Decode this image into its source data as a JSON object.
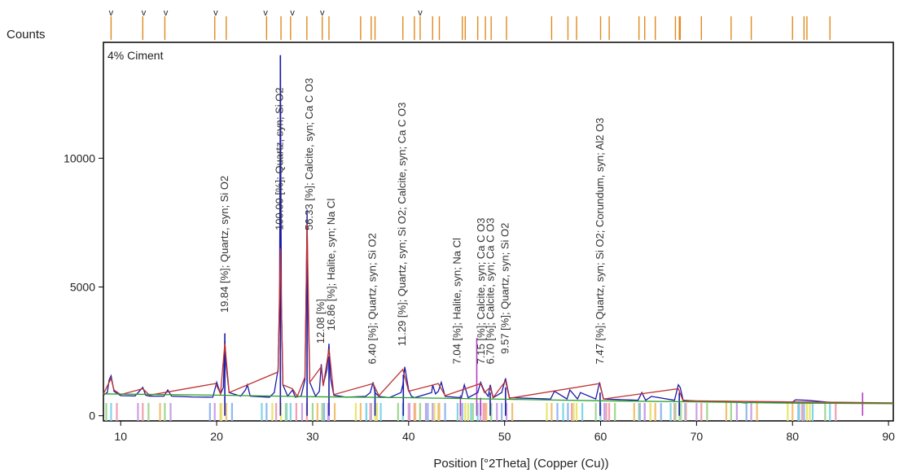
{
  "chart_data": {
    "type": "line",
    "title": "",
    "sample_label": "4% Ciment",
    "ylabel": "Counts",
    "xlabel": "Position [°2Theta] (Copper (Cu))",
    "xlim": [
      8.2,
      90.5
    ],
    "ylim": [
      -200,
      14500
    ],
    "xticks": [
      10,
      20,
      30,
      40,
      50,
      60,
      70,
      80,
      90
    ],
    "yticks": [
      0,
      5000,
      10000
    ],
    "grid": false,
    "series": [
      {
        "color": "#1a1aa8",
        "x": [
          8.2,
          8.6,
          8.8,
          9.0,
          9.3,
          10.0,
          11.5,
          12.3,
          12.6,
          13.0,
          14.5,
          14.9,
          15.3,
          17.5,
          19.6,
          20.0,
          20.4,
          20.7,
          20.85,
          21.0,
          21.3,
          22.5,
          23.0,
          23.2,
          23.5,
          25.5,
          26.0,
          26.4,
          26.55,
          26.64,
          26.75,
          26.9,
          27.4,
          27.9,
          28.2,
          28.8,
          29.2,
          29.35,
          29.42,
          29.5,
          29.7,
          30.3,
          30.7,
          30.9,
          31.1,
          31.5,
          31.7,
          31.85,
          32.2,
          33.5,
          35.5,
          36.0,
          36.3,
          36.5,
          36.9,
          38.0,
          39.2,
          39.4,
          39.6,
          40.0,
          40.3,
          40.6,
          42.4,
          42.5,
          42.8,
          43.1,
          43.4,
          43.8,
          45.5,
          45.8,
          46.2,
          47.2,
          47.5,
          47.9,
          48.3,
          48.5,
          48.8,
          49.7,
          50.1,
          50.5,
          54.8,
          55.2,
          56.5,
          56.8,
          57.6,
          57.9,
          59.5,
          59.9,
          60.3,
          63.9,
          64.3,
          64.7,
          65.3,
          67.7,
          68.1,
          68.3,
          68.6,
          70.5,
          73.5,
          75.0,
          75.6,
          79.9,
          80.3,
          81.5,
          83.9,
          87.5,
          90.5
        ],
        "y": [
          800,
          900,
          1400,
          1550,
          950,
          780,
          770,
          1100,
          800,
          760,
          760,
          1000,
          760,
          730,
          720,
          1300,
          850,
          1100,
          2900,
          1900,
          900,
          760,
          1000,
          1200,
          760,
          720,
          900,
          1800,
          4500,
          14000,
          4200,
          1200,
          760,
          1000,
          720,
          760,
          1400,
          5500,
          8000,
          4800,
          1300,
          760,
          950,
          2000,
          1200,
          1800,
          2800,
          1500,
          800,
          720,
          750,
          900,
          1300,
          900,
          750,
          700,
          900,
          1200,
          1900,
          1000,
          750,
          700,
          900,
          1200,
          850,
          950,
          1300,
          750,
          700,
          1200,
          700,
          900,
          1300,
          950,
          750,
          1200,
          700,
          900,
          1450,
          700,
          650,
          950,
          650,
          1000,
          650,
          900,
          650,
          1300,
          650,
          600,
          900,
          600,
          750,
          600,
          1200,
          1100,
          600,
          560,
          560,
          500,
          520,
          500,
          620,
          600,
          520,
          500,
          480
        ]
      },
      {
        "color": "#c03030",
        "x": [
          8.2,
          9.0,
          9.3,
          10.0,
          12.3,
          13.0,
          19.9,
          20.4,
          20.85,
          21.3,
          26.4,
          26.64,
          26.9,
          27.9,
          28.4,
          29.2,
          29.42,
          29.7,
          30.9,
          31.1,
          31.7,
          32.2,
          36.3,
          36.9,
          39.4,
          40.0,
          43.1,
          43.8,
          47.5,
          47.9,
          48.5,
          48.8,
          50.1,
          50.5,
          59.9,
          60.3,
          68.1,
          68.6,
          90.5
        ],
        "y": [
          850,
          1450,
          1000,
          820,
          1050,
          800,
          1250,
          850,
          2800,
          900,
          1700,
          6500,
          1200,
          1050,
          750,
          1500,
          7500,
          1300,
          1900,
          1150,
          2600,
          820,
          1250,
          780,
          1800,
          950,
          1250,
          780,
          1250,
          900,
          1100,
          700,
          1350,
          680,
          1250,
          650,
          1050,
          580,
          500
        ]
      },
      {
        "color": "#2aa02a",
        "x": [
          8.2,
          20.0,
          30.0,
          40.0,
          50.0,
          60.0,
          70.0,
          80.0,
          90.5
        ],
        "y": [
          850,
          800,
          740,
          700,
          640,
          580,
          540,
          490,
          470
        ]
      }
    ],
    "reference_pattern": {
      "color": "#e08a1e",
      "positions": [
        9.0,
        12.3,
        14.6,
        19.8,
        21.0,
        25.2,
        26.7,
        27.7,
        29.4,
        31.0,
        31.7,
        35.0,
        36.1,
        36.5,
        39.4,
        40.6,
        41.2,
        42.5,
        43.2,
        45.6,
        45.9,
        47.2,
        48.0,
        48.6,
        50.2,
        54.9,
        56.6,
        57.5,
        60.0,
        60.9,
        64.0,
        64.6,
        65.7,
        67.8,
        68.2,
        68.3,
        70.5,
        73.6,
        75.7,
        80.0,
        81.2,
        81.5,
        83.9
      ],
      "markers_v": [
        9.0,
        12.4,
        14.7,
        19.9,
        25.1,
        27.9,
        31.0,
        41.2
      ]
    },
    "stick_lines": {
      "positions": [
        20.85,
        26.64,
        29.42,
        31.7,
        36.5,
        39.45,
        45.4,
        47.1,
        47.5,
        48.5,
        50.1,
        59.95,
        68.2,
        87.3
      ],
      "heights": [
        3200,
        14000,
        7000,
        2300,
        1000,
        1600,
        800,
        3000,
        700,
        900,
        1100,
        900,
        900,
        900
      ],
      "colors": [
        "#1a1aa8",
        "#1a1aa8",
        "#1a1aa8",
        "#1a1aa8",
        "#1a1aa8",
        "#1a1aa8",
        "#b040c0",
        "#b040c0",
        "#b040c0",
        "#1a1aa8",
        "#1a1aa8",
        "#1a1aa8",
        "#1a1aa8",
        "#b040c0"
      ]
    },
    "annotations": [
      {
        "x": 21.2,
        "y": 4000,
        "text": "19.84 [%]; Quartz, syn; Si O2"
      },
      {
        "x": 26.9,
        "y": 7200,
        "text": "100.00 [%]; Quartz, syn; Si O2"
      },
      {
        "x": 30.0,
        "y": 7200,
        "text": "56.33 [%]; Calcite, syn; Ca C O3"
      },
      {
        "x": 31.2,
        "y": 2800,
        "text": "12.08 [%]"
      },
      {
        "x": 32.3,
        "y": 3300,
        "text": "16.86 [%]; Halite, syn; Na Cl"
      },
      {
        "x": 36.6,
        "y": 2000,
        "text": "6.40 [%]; Quartz, syn; Si O2"
      },
      {
        "x": 39.7,
        "y": 2700,
        "text": "11.29 [%]; Quartz, syn; Si O2; Calcite, syn; Ca C O3"
      },
      {
        "x": 45.4,
        "y": 2000,
        "text": "7.04 [%]; Halite, syn; Na Cl"
      },
      {
        "x": 47.9,
        "y": 2000,
        "text": "7.15 [%]; Calcite, syn; Ca C O3"
      },
      {
        "x": 48.9,
        "y": 2000,
        "text": "6.70 [%]; Calcite, syn; Ca C O3"
      },
      {
        "x": 50.4,
        "y": 2400,
        "text": "9.57 [%]; Quartz, syn; Si O2"
      },
      {
        "x": 60.3,
        "y": 2000,
        "text": "7.47 [%]; Quartz, syn; Si O2; Corundum, syn; Al2 O3"
      }
    ]
  }
}
